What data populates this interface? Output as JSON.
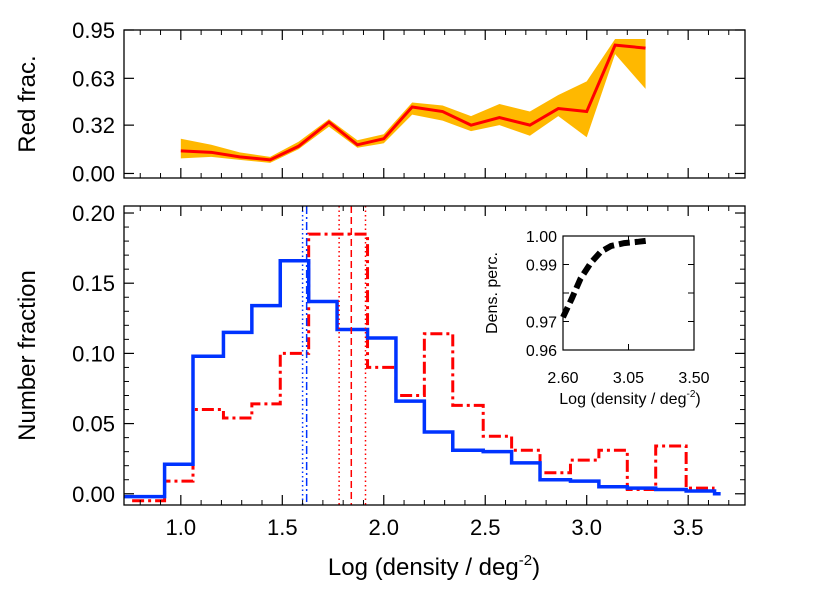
{
  "chart_data": [
    {
      "type": "line",
      "panel": "top",
      "ylabel": "Red frac.",
      "xlim": [
        0.72,
        3.78
      ],
      "ylim": [
        -0.03,
        0.95
      ],
      "yticks": [
        "0.95",
        "0.63",
        "0.32",
        "0.00"
      ],
      "ytick_values": [
        0.95,
        0.63,
        0.32,
        0.0
      ],
      "x": [
        1.0,
        1.15,
        1.29,
        1.44,
        1.58,
        1.73,
        1.87,
        2.0,
        2.14,
        2.29,
        2.43,
        2.57,
        2.72,
        2.86,
        3.0,
        3.14,
        3.29
      ],
      "series": [
        {
          "values": [
            0.15,
            0.14,
            0.11,
            0.09,
            0.18,
            0.34,
            0.19,
            0.23,
            0.44,
            0.41,
            0.32,
            0.37,
            0.32,
            0.43,
            0.41,
            0.85,
            0.83
          ],
          "band_upper": [
            0.23,
            0.19,
            0.14,
            0.11,
            0.21,
            0.36,
            0.22,
            0.26,
            0.47,
            0.45,
            0.38,
            0.46,
            0.41,
            0.52,
            0.61,
            0.89,
            0.89
          ],
          "band_lower": [
            0.1,
            0.11,
            0.09,
            0.07,
            0.16,
            0.31,
            0.17,
            0.2,
            0.39,
            0.35,
            0.28,
            0.32,
            0.25,
            0.38,
            0.24,
            0.79,
            0.56
          ],
          "color": "#ff0000",
          "band_color": "#ffb800"
        }
      ]
    },
    {
      "type": "line",
      "panel": "bottom",
      "xlabel": "Log (density / deg",
      "xlabel_sup": "-2",
      "xlabel_close": ")",
      "ylabel": "Number fraction",
      "xlim": [
        0.72,
        3.78
      ],
      "ylim": [
        -0.008,
        0.205
      ],
      "xticks": [
        "1.0",
        "1.5",
        "2.0",
        "2.5",
        "3.0",
        "3.5"
      ],
      "xtick_values": [
        1.0,
        1.5,
        2.0,
        2.5,
        3.0,
        3.5
      ],
      "yticks": [
        "0.20",
        "0.15",
        "0.10",
        "0.05",
        "0.00"
      ],
      "ytick_values": [
        0.2,
        0.15,
        0.1,
        0.05,
        0.0
      ],
      "series": [
        {
          "style": "solid-step",
          "color": "#0033ff",
          "edges": [
            0.72,
            0.92,
            1.06,
            1.21,
            1.35,
            1.49,
            1.63,
            1.77,
            1.92,
            2.06,
            2.2,
            2.34,
            2.49,
            2.63,
            2.77,
            2.92,
            3.06,
            3.2,
            3.34,
            3.49,
            3.63,
            3.66
          ],
          "values": [
            -0.002,
            0.021,
            0.098,
            0.115,
            0.134,
            0.166,
            0.137,
            0.117,
            0.111,
            0.066,
            0.044,
            0.031,
            0.03,
            0.022,
            0.01,
            0.009,
            0.005,
            0.004,
            0.003,
            0.002,
            0.0
          ]
        },
        {
          "style": "dashdot-step",
          "color": "#ff0000",
          "edges": [
            0.76,
            0.92,
            1.06,
            1.21,
            1.35,
            1.49,
            1.63,
            1.77,
            1.92,
            2.06,
            2.2,
            2.34,
            2.49,
            2.63,
            2.77,
            2.92,
            3.06,
            3.2,
            3.34,
            3.49,
            3.63
          ],
          "values": [
            -0.005,
            0.009,
            0.06,
            0.054,
            0.064,
            0.1,
            0.185,
            0.185,
            0.09,
            0.07,
            0.114,
            0.063,
            0.041,
            0.031,
            0.015,
            0.024,
            0.031,
            0.003,
            0.034,
            0.004
          ]
        }
      ],
      "vlines": [
        {
          "x": 1.6,
          "style": "dotted",
          "color": "#0033ff"
        },
        {
          "x": 1.62,
          "style": "dashdot",
          "color": "#0033ff"
        },
        {
          "x": 1.78,
          "style": "dotted",
          "color": "#ff0000"
        },
        {
          "x": 1.84,
          "style": "dashed",
          "color": "#ff0000"
        },
        {
          "x": 1.91,
          "style": "dotted",
          "color": "#ff0000"
        }
      ]
    },
    {
      "type": "line",
      "panel": "inset",
      "xlabel": "Log (density / deg",
      "xlabel_sup": "-2",
      "xlabel_close": ")",
      "ylabel": "Dens. perc.",
      "xlim": [
        2.6,
        3.5
      ],
      "ylim": [
        0.96,
        1.0
      ],
      "xticks": [
        "2.60",
        "3.05",
        "3.50"
      ],
      "xtick_values": [
        2.6,
        3.05,
        3.5
      ],
      "yticks": [
        "1.00",
        "0.99",
        "0.98",
        "0.97",
        "0.96"
      ],
      "ytick_values": [
        1.0,
        0.99,
        0.98,
        0.97,
        0.96
      ],
      "x": [
        2.6,
        2.66,
        2.72,
        2.79,
        2.86,
        2.93,
        3.02,
        3.12,
        3.2
      ],
      "series": [
        {
          "style": "thick-dashed",
          "color": "#000000",
          "values": [
            0.9715,
            0.978,
            0.985,
            0.9905,
            0.9945,
            0.9965,
            0.9975,
            0.998,
            0.9985
          ]
        }
      ]
    }
  ]
}
